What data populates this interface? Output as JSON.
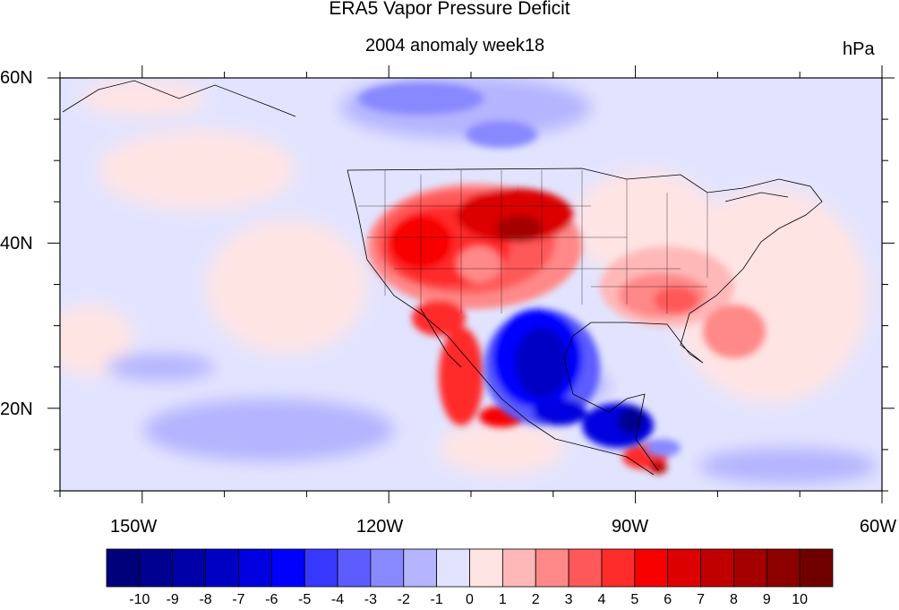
{
  "title": "ERA5 Vapor Pressure Deficit",
  "subtitle": "2004 anomaly week18",
  "units": "hPa",
  "lat_labels": [
    "60N",
    "40N",
    "20N"
  ],
  "lon_labels": [
    "150W",
    "120W",
    "90W",
    "60W"
  ],
  "colorbar": {
    "labels": [
      "-10",
      "-9",
      "-8",
      "-7",
      "-6",
      "-5",
      "-4",
      "-3",
      "-2",
      "-1",
      "0",
      "1",
      "2",
      "3",
      "4",
      "5",
      "6",
      "7",
      "8",
      "9",
      "10"
    ],
    "colors": [
      "#00007a",
      "#000090",
      "#0000a8",
      "#0000c4",
      "#0000e0",
      "#0000ff",
      "#3838ff",
      "#5c5cff",
      "#8888ff",
      "#b4b4ff",
      "#e2e4ff",
      "#ffe4e4",
      "#ffb8b8",
      "#ff8888",
      "#ff5858",
      "#ff2c2c",
      "#f80000",
      "#dc0000",
      "#c00000",
      "#a40000",
      "#8c0000",
      "#700000"
    ]
  },
  "map_data": {
    "extent_lon": [
      -160,
      -60
    ],
    "extent_lat": [
      10,
      60
    ],
    "background_anomaly": "-1 to 0",
    "features": [
      {
        "name": "western-us-dry-anomaly",
        "value_range": "4 to 9"
      },
      {
        "name": "mexico-wet-anomaly",
        "value_range": "-10 to -5"
      },
      {
        "name": "southeast-us-dry-anomaly",
        "value_range": "1 to 5"
      },
      {
        "name": "northern-canada-wet-anomaly",
        "value_range": "-4 to -1"
      }
    ]
  }
}
